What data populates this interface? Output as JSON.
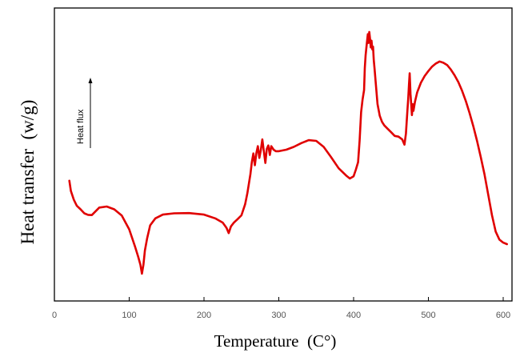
{
  "chart_data": {
    "type": "line",
    "title": "",
    "xlabel": "Temperature  (C°)",
    "ylabel": "Heat transfer  (w/g)",
    "annotation": "Heat flux",
    "xlim": [
      0,
      620
    ],
    "ylim": [
      0,
      100
    ],
    "xticks": [
      0,
      100,
      200,
      300,
      400,
      500,
      600
    ],
    "yticks_labeled": false,
    "grid": false,
    "legend": "none",
    "line_color": "#e00000",
    "series": [
      {
        "x": [
          20,
          22,
          26,
          30,
          35,
          40,
          45,
          50,
          60,
          70,
          80,
          90,
          100,
          108,
          112,
          115,
          117,
          119,
          121,
          124,
          128,
          135,
          145,
          160,
          180,
          200,
          215,
          225,
          230,
          233,
          236,
          240,
          245,
          250,
          255,
          258,
          262,
          264,
          266,
          268,
          270,
          272,
          274,
          276,
          278,
          280,
          282,
          284,
          286,
          288,
          290,
          293,
          296,
          300,
          310,
          320,
          330,
          340,
          350,
          360,
          370,
          380,
          390,
          395,
          400,
          403,
          406,
          408,
          410,
          412,
          414,
          415,
          416,
          417,
          418,
          419,
          420,
          421,
          422,
          423,
          424,
          425,
          426,
          427,
          428,
          430,
          432,
          435,
          438,
          441,
          445,
          450,
          455,
          460,
          465,
          468,
          470,
          472,
          473,
          474,
          475,
          476,
          477,
          478,
          479,
          480,
          482,
          485,
          490,
          495,
          500,
          505,
          510,
          515,
          520,
          525,
          530,
          535,
          540,
          545,
          550,
          555,
          560,
          565,
          570,
          575,
          580,
          585,
          590,
          595,
          600,
          605
        ],
        "y": [
          40.0,
          35.9,
          32.4,
          30.0,
          28.6,
          27.0,
          26.4,
          26.3,
          29.3,
          29.7,
          28.6,
          26.1,
          20.6,
          13.5,
          9.7,
          6.5,
          2.9,
          6.5,
          12.1,
          17.0,
          22.2,
          25.0,
          26.5,
          27.0,
          27.1,
          26.5,
          25.0,
          23.3,
          21.2,
          19.1,
          21.8,
          23.3,
          24.7,
          26.2,
          30.6,
          35.0,
          42.6,
          47.4,
          50.9,
          46.2,
          50.9,
          53.8,
          49.1,
          52.4,
          56.5,
          51.8,
          47.1,
          52.7,
          54.1,
          50.3,
          53.8,
          52.4,
          51.8,
          51.8,
          52.4,
          53.5,
          55.0,
          56.2,
          55.9,
          53.5,
          49.4,
          45.0,
          42.1,
          40.9,
          41.8,
          44.4,
          47.4,
          55.9,
          67.4,
          72.4,
          76.2,
          85.0,
          90.0,
          92.9,
          95.6,
          98.5,
          95.0,
          99.4,
          96.5,
          93.2,
          95.9,
          92.4,
          93.5,
          88.2,
          84.7,
          77.4,
          70.6,
          65.9,
          63.5,
          62.1,
          60.9,
          59.4,
          57.9,
          57.6,
          56.5,
          54.4,
          58.8,
          68.2,
          72.9,
          78.2,
          82.9,
          74.7,
          70.6,
          66.2,
          70.6,
          67.9,
          71.5,
          75.3,
          79.1,
          81.8,
          83.8,
          85.6,
          86.8,
          87.6,
          87.1,
          86.2,
          84.4,
          82.1,
          79.4,
          75.9,
          71.8,
          67.1,
          61.8,
          55.9,
          49.4,
          42.6,
          34.4,
          26.2,
          19.7,
          16.5,
          15.3,
          14.7
        ]
      }
    ]
  }
}
